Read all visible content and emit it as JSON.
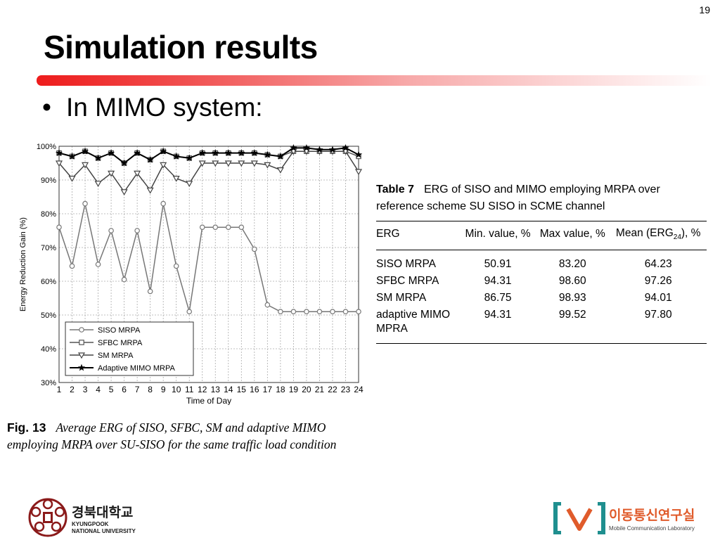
{
  "slide": {
    "page_number": "19",
    "title": "Simulation results",
    "bullet": "In MIMO system:"
  },
  "colors": {
    "title_bar": "#ee1c1c",
    "lab_orange": "#e05b2b"
  },
  "chart_data": {
    "type": "line",
    "title": "",
    "xlabel": "Time of Day",
    "ylabel": "Energy Reduction Gain (%)",
    "x": [
      1,
      2,
      3,
      4,
      5,
      6,
      7,
      8,
      9,
      10,
      11,
      12,
      13,
      14,
      15,
      16,
      17,
      18,
      19,
      20,
      21,
      22,
      23,
      24
    ],
    "ylim": [
      30,
      100
    ],
    "yticks": [
      30,
      40,
      50,
      60,
      70,
      80,
      90,
      100
    ],
    "ytick_labels": [
      "30%",
      "40%",
      "50%",
      "60%",
      "70%",
      "80%",
      "90%",
      "100%"
    ],
    "grid": true,
    "legend_position": "bottom-left",
    "series": [
      {
        "name": "SISO MRPA",
        "marker": "circle",
        "values": [
          76,
          64.5,
          83,
          65,
          75,
          60.5,
          75,
          57,
          83,
          64.5,
          51,
          76,
          76,
          76,
          76,
          69.5,
          53,
          51,
          51,
          51,
          51,
          51,
          51,
          51
        ]
      },
      {
        "name": "SFBC MRPA",
        "marker": "square",
        "values": [
          98,
          97,
          98.5,
          96.5,
          98,
          95,
          98,
          96,
          98.5,
          97,
          96.5,
          98,
          98,
          98,
          98,
          98,
          97.5,
          97,
          98.5,
          98.5,
          98.5,
          98.5,
          98.5,
          97
        ]
      },
      {
        "name": "SM MRPA",
        "marker": "triangle-down",
        "values": [
          95,
          90.5,
          94.5,
          89,
          92,
          86.5,
          92,
          87,
          94.5,
          90.5,
          89,
          95,
          95,
          95,
          95,
          95,
          94.5,
          93,
          98.5,
          98.5,
          98.5,
          98.5,
          98.5,
          92.5
        ]
      },
      {
        "name": "Adaptive MIMO MRPA",
        "marker": "star",
        "values": [
          98,
          97,
          98.5,
          96.5,
          98,
          95,
          98,
          96,
          98.5,
          97,
          96.5,
          98,
          98,
          98,
          98,
          98,
          97.5,
          97,
          99.5,
          99.5,
          99,
          99,
          99.5,
          97.5
        ]
      }
    ]
  },
  "figure": {
    "label": "Fig. 13",
    "caption_line1": "Average ERG of SISO, SFBC, SM and adaptive MIMO",
    "caption_line2": "employing MRPA over SU-SISO for the same traffic load condition"
  },
  "table": {
    "label": "Table 7",
    "caption_line1": "ERG of SISO and MIMO employing MRPA over",
    "caption_line2": "reference scheme SU SISO in SCME channel",
    "headers": {
      "erg": "ERG",
      "min": "Min. value, %",
      "max": "Max value, %",
      "mean_prefix": "Mean (ERG",
      "mean_sub": "24",
      "mean_suffix": "), %"
    },
    "rows": [
      {
        "name": "SISO MRPA",
        "min": "50.91",
        "max": "83.20",
        "mean": "64.23"
      },
      {
        "name": "SFBC MRPA",
        "min": "94.31",
        "max": "98.60",
        "mean": "97.26"
      },
      {
        "name": "SM MRPA",
        "min": "86.75",
        "max": "98.93",
        "mean": "94.01"
      },
      {
        "name": "adaptive MIMO",
        "name_line2": "MPRA",
        "min": "94.31",
        "max": "99.52",
        "mean": "97.80"
      }
    ]
  },
  "footer": {
    "university_korean": "경북대학교",
    "university_english_line1": "KYUNGPOOK",
    "university_english_line2": "NATIONAL UNIVERSITY",
    "lab_korean": "이동통신연구실",
    "lab_english": "Mobile Communication Laboratory"
  }
}
